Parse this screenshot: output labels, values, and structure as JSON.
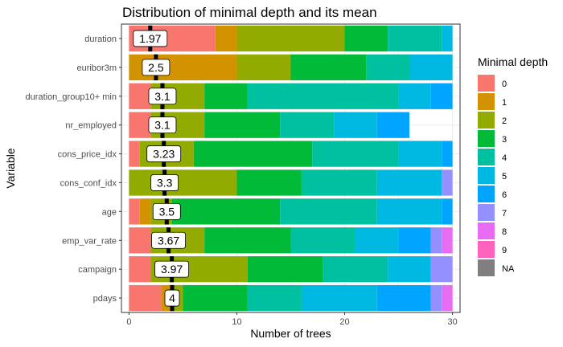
{
  "chart_data": {
    "type": "bar",
    "orientation": "horizontal",
    "stacked": true,
    "title": "Distribution of minimal depth and its mean",
    "xlabel": "Number of trees",
    "ylabel": "Variable",
    "xlim": [
      -0.7,
      30.7
    ],
    "xticks": [
      0,
      10,
      20,
      30
    ],
    "grid": true,
    "legend_position": "right",
    "legend": {
      "title": "Minimal depth",
      "entries": [
        {
          "label": "0",
          "color": "#F8766D"
        },
        {
          "label": "1",
          "color": "#D39200"
        },
        {
          "label": "2",
          "color": "#93AA00"
        },
        {
          "label": "3",
          "color": "#00BA38"
        },
        {
          "label": "4",
          "color": "#00C19F"
        },
        {
          "label": "5",
          "color": "#00B9E3"
        },
        {
          "label": "6",
          "color": "#00A5FF"
        },
        {
          "label": "7",
          "color": "#9590FF"
        },
        {
          "label": "8",
          "color": "#E76BF3"
        },
        {
          "label": "9",
          "color": "#FF62BC"
        },
        {
          "label": "NA",
          "color": "#7F7F7F"
        }
      ]
    },
    "categories": [
      "duration",
      "euribor3m",
      "duration_group10+ min",
      "nr_employed",
      "cons_price_idx",
      "cons_conf_idx",
      "age",
      "emp_var_rate",
      "campaign",
      "pdays"
    ],
    "counts": [
      [
        8,
        2,
        10,
        4,
        5,
        1,
        0,
        0,
        0,
        0
      ],
      [
        0,
        10,
        5,
        7,
        4,
        4,
        0,
        0,
        0,
        0
      ],
      [
        2,
        0,
        5,
        4,
        14,
        3,
        2,
        0,
        0,
        0
      ],
      [
        2,
        0,
        5,
        7,
        5,
        4,
        3,
        0,
        0,
        0
      ],
      [
        1,
        0,
        5,
        11,
        8,
        4,
        1,
        0,
        0,
        0
      ],
      [
        0,
        0,
        10,
        6,
        7,
        6,
        0,
        1,
        0,
        0
      ],
      [
        1,
        1,
        2,
        10,
        9,
        6,
        1,
        0,
        0,
        0
      ],
      [
        2,
        0,
        5,
        8,
        6,
        4,
        3,
        1,
        1,
        0
      ],
      [
        2,
        0,
        9,
        7,
        6,
        4,
        0,
        2,
        0,
        0
      ],
      [
        3,
        1,
        1,
        6,
        5,
        7,
        5,
        1,
        1,
        0
      ]
    ],
    "means": [
      1.97,
      2.5,
      3.1,
      3.1,
      3.23,
      3.3,
      3.5,
      3.67,
      3.97,
      4
    ],
    "mean_labels": [
      "1.97",
      "2.5",
      "3.1",
      "3.1",
      "3.23",
      "3.3",
      "3.5",
      "3.67",
      "3.97",
      "4"
    ]
  }
}
